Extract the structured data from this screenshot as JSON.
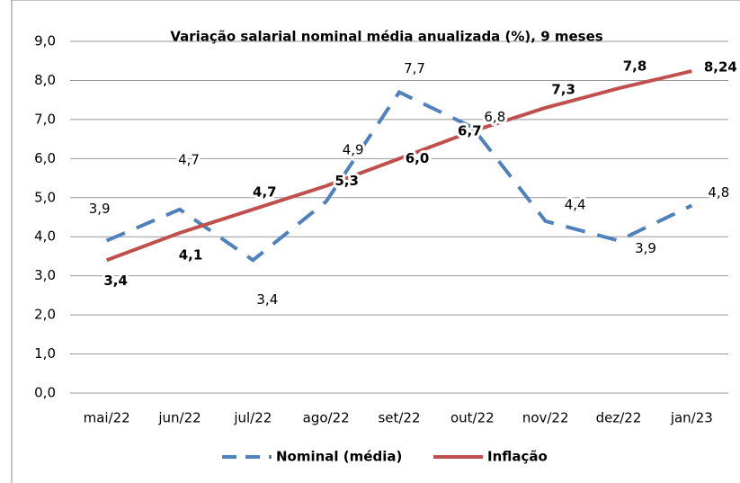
{
  "chart_data": {
    "type": "line",
    "title": "Variação salarial nominal média anualizada (%), 9 meses",
    "categories": [
      "mai/22",
      "jun/22",
      "jul/22",
      "ago/22",
      "set/22",
      "out/22",
      "nov/22",
      "dez/22",
      "jan/23"
    ],
    "series": [
      {
        "name": "Nominal (média)",
        "color": "#4f81bd",
        "dashed": true,
        "values": [
          3.9,
          4.7,
          3.4,
          4.9,
          7.7,
          6.8,
          4.4,
          3.9,
          4.8
        ],
        "value_labels": [
          "3,9",
          "4,7",
          "3,4",
          "4,9",
          "7,7",
          "6,8",
          "4,4",
          "3,9",
          "4,8"
        ]
      },
      {
        "name": "Inflação",
        "color": "#c0504d",
        "dashed": false,
        "values": [
          3.4,
          4.1,
          4.7,
          5.3,
          6.0,
          6.7,
          7.3,
          7.8,
          8.24
        ],
        "value_labels": [
          "3,4",
          "4,1",
          "4,7",
          "5,3",
          "6,0",
          "6,7",
          "7,3",
          "7,8",
          "8,24"
        ]
      }
    ],
    "ylim": [
      0,
      9
    ],
    "yticks": [
      {
        "value": 0,
        "label": "0,0"
      },
      {
        "value": 1,
        "label": "1,0"
      },
      {
        "value": 2,
        "label": "2,0"
      },
      {
        "value": 3,
        "label": "3,0"
      },
      {
        "value": 4,
        "label": "4,0"
      },
      {
        "value": 5,
        "label": "5,0"
      },
      {
        "value": 6,
        "label": "6,0"
      },
      {
        "value": 7,
        "label": "7,0"
      },
      {
        "value": 8,
        "label": "8,0"
      },
      {
        "value": 9,
        "label": "9,0"
      }
    ],
    "grid": true,
    "legend": "bottom"
  }
}
